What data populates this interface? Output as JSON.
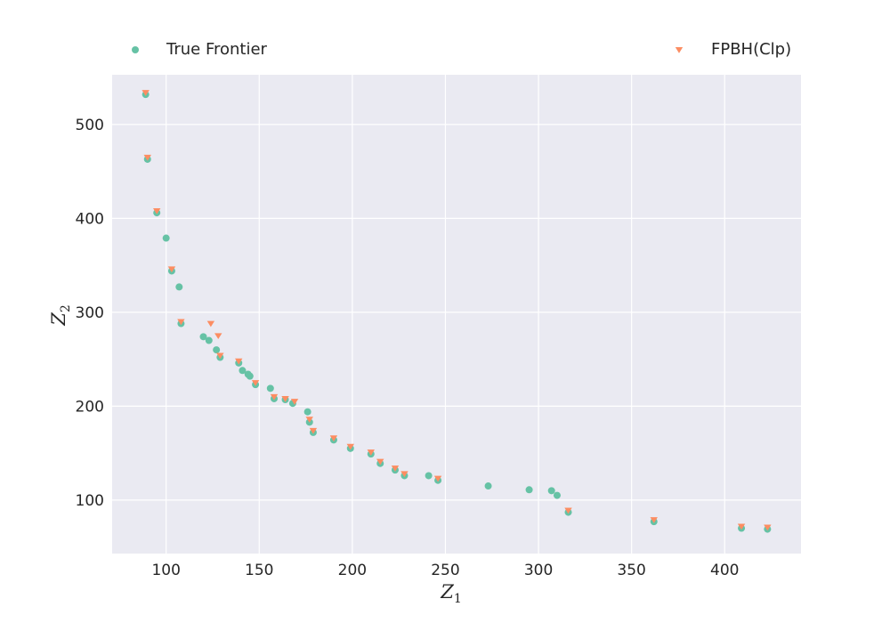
{
  "chart_data": {
    "type": "scatter",
    "title": "",
    "xlabel": "Z",
    "xlabel_sub": "1",
    "ylabel": "Z",
    "ylabel_sub": "2",
    "xlim": [
      71,
      441
    ],
    "ylim": [
      43,
      553
    ],
    "xticks": [
      100,
      150,
      200,
      250,
      300,
      350,
      400
    ],
    "yticks": [
      100,
      200,
      300,
      400,
      500
    ],
    "grid": true,
    "legend_placement": "top",
    "colors": {
      "plot_bg": "#eaeaf2",
      "grid": "#ffffff",
      "text": "#262626"
    },
    "series": [
      {
        "name": "True Frontier",
        "marker": "circle",
        "color": "#66c2a5",
        "points": [
          [
            89,
            532
          ],
          [
            90,
            463
          ],
          [
            95,
            406
          ],
          [
            100,
            379
          ],
          [
            103,
            344
          ],
          [
            107,
            327
          ],
          [
            108,
            288
          ],
          [
            120,
            274
          ],
          [
            123,
            270
          ],
          [
            127,
            260
          ],
          [
            129,
            252
          ],
          [
            139,
            246
          ],
          [
            141,
            238
          ],
          [
            144,
            234
          ],
          [
            145,
            232
          ],
          [
            148,
            223
          ],
          [
            156,
            219
          ],
          [
            158,
            208
          ],
          [
            164,
            207
          ],
          [
            168,
            203
          ],
          [
            176,
            194
          ],
          [
            177,
            183
          ],
          [
            179,
            172
          ],
          [
            190,
            164
          ],
          [
            199,
            155
          ],
          [
            210,
            149
          ],
          [
            215,
            139
          ],
          [
            223,
            132
          ],
          [
            228,
            126
          ],
          [
            241,
            126
          ],
          [
            246,
            121
          ],
          [
            273,
            115
          ],
          [
            295,
            111
          ],
          [
            307,
            110
          ],
          [
            310,
            105
          ],
          [
            316,
            87
          ],
          [
            362,
            77
          ],
          [
            409,
            70
          ],
          [
            423,
            69
          ]
        ]
      },
      {
        "name": "FPBH(Clp)",
        "marker": "triangle-down",
        "color": "#fc8d62",
        "points": [
          [
            89,
            534
          ],
          [
            90,
            465
          ],
          [
            95,
            408
          ],
          [
            103,
            346
          ],
          [
            108,
            290
          ],
          [
            124,
            288
          ],
          [
            128,
            275
          ],
          [
            129,
            254
          ],
          [
            139,
            248
          ],
          [
            148,
            225
          ],
          [
            158,
            210
          ],
          [
            164,
            208
          ],
          [
            169,
            205
          ],
          [
            177,
            186
          ],
          [
            179,
            174
          ],
          [
            190,
            166
          ],
          [
            199,
            157
          ],
          [
            210,
            151
          ],
          [
            215,
            141
          ],
          [
            223,
            134
          ],
          [
            228,
            128
          ],
          [
            246,
            123
          ],
          [
            316,
            89
          ],
          [
            362,
            79
          ],
          [
            409,
            72
          ],
          [
            423,
            71
          ]
        ]
      }
    ]
  }
}
